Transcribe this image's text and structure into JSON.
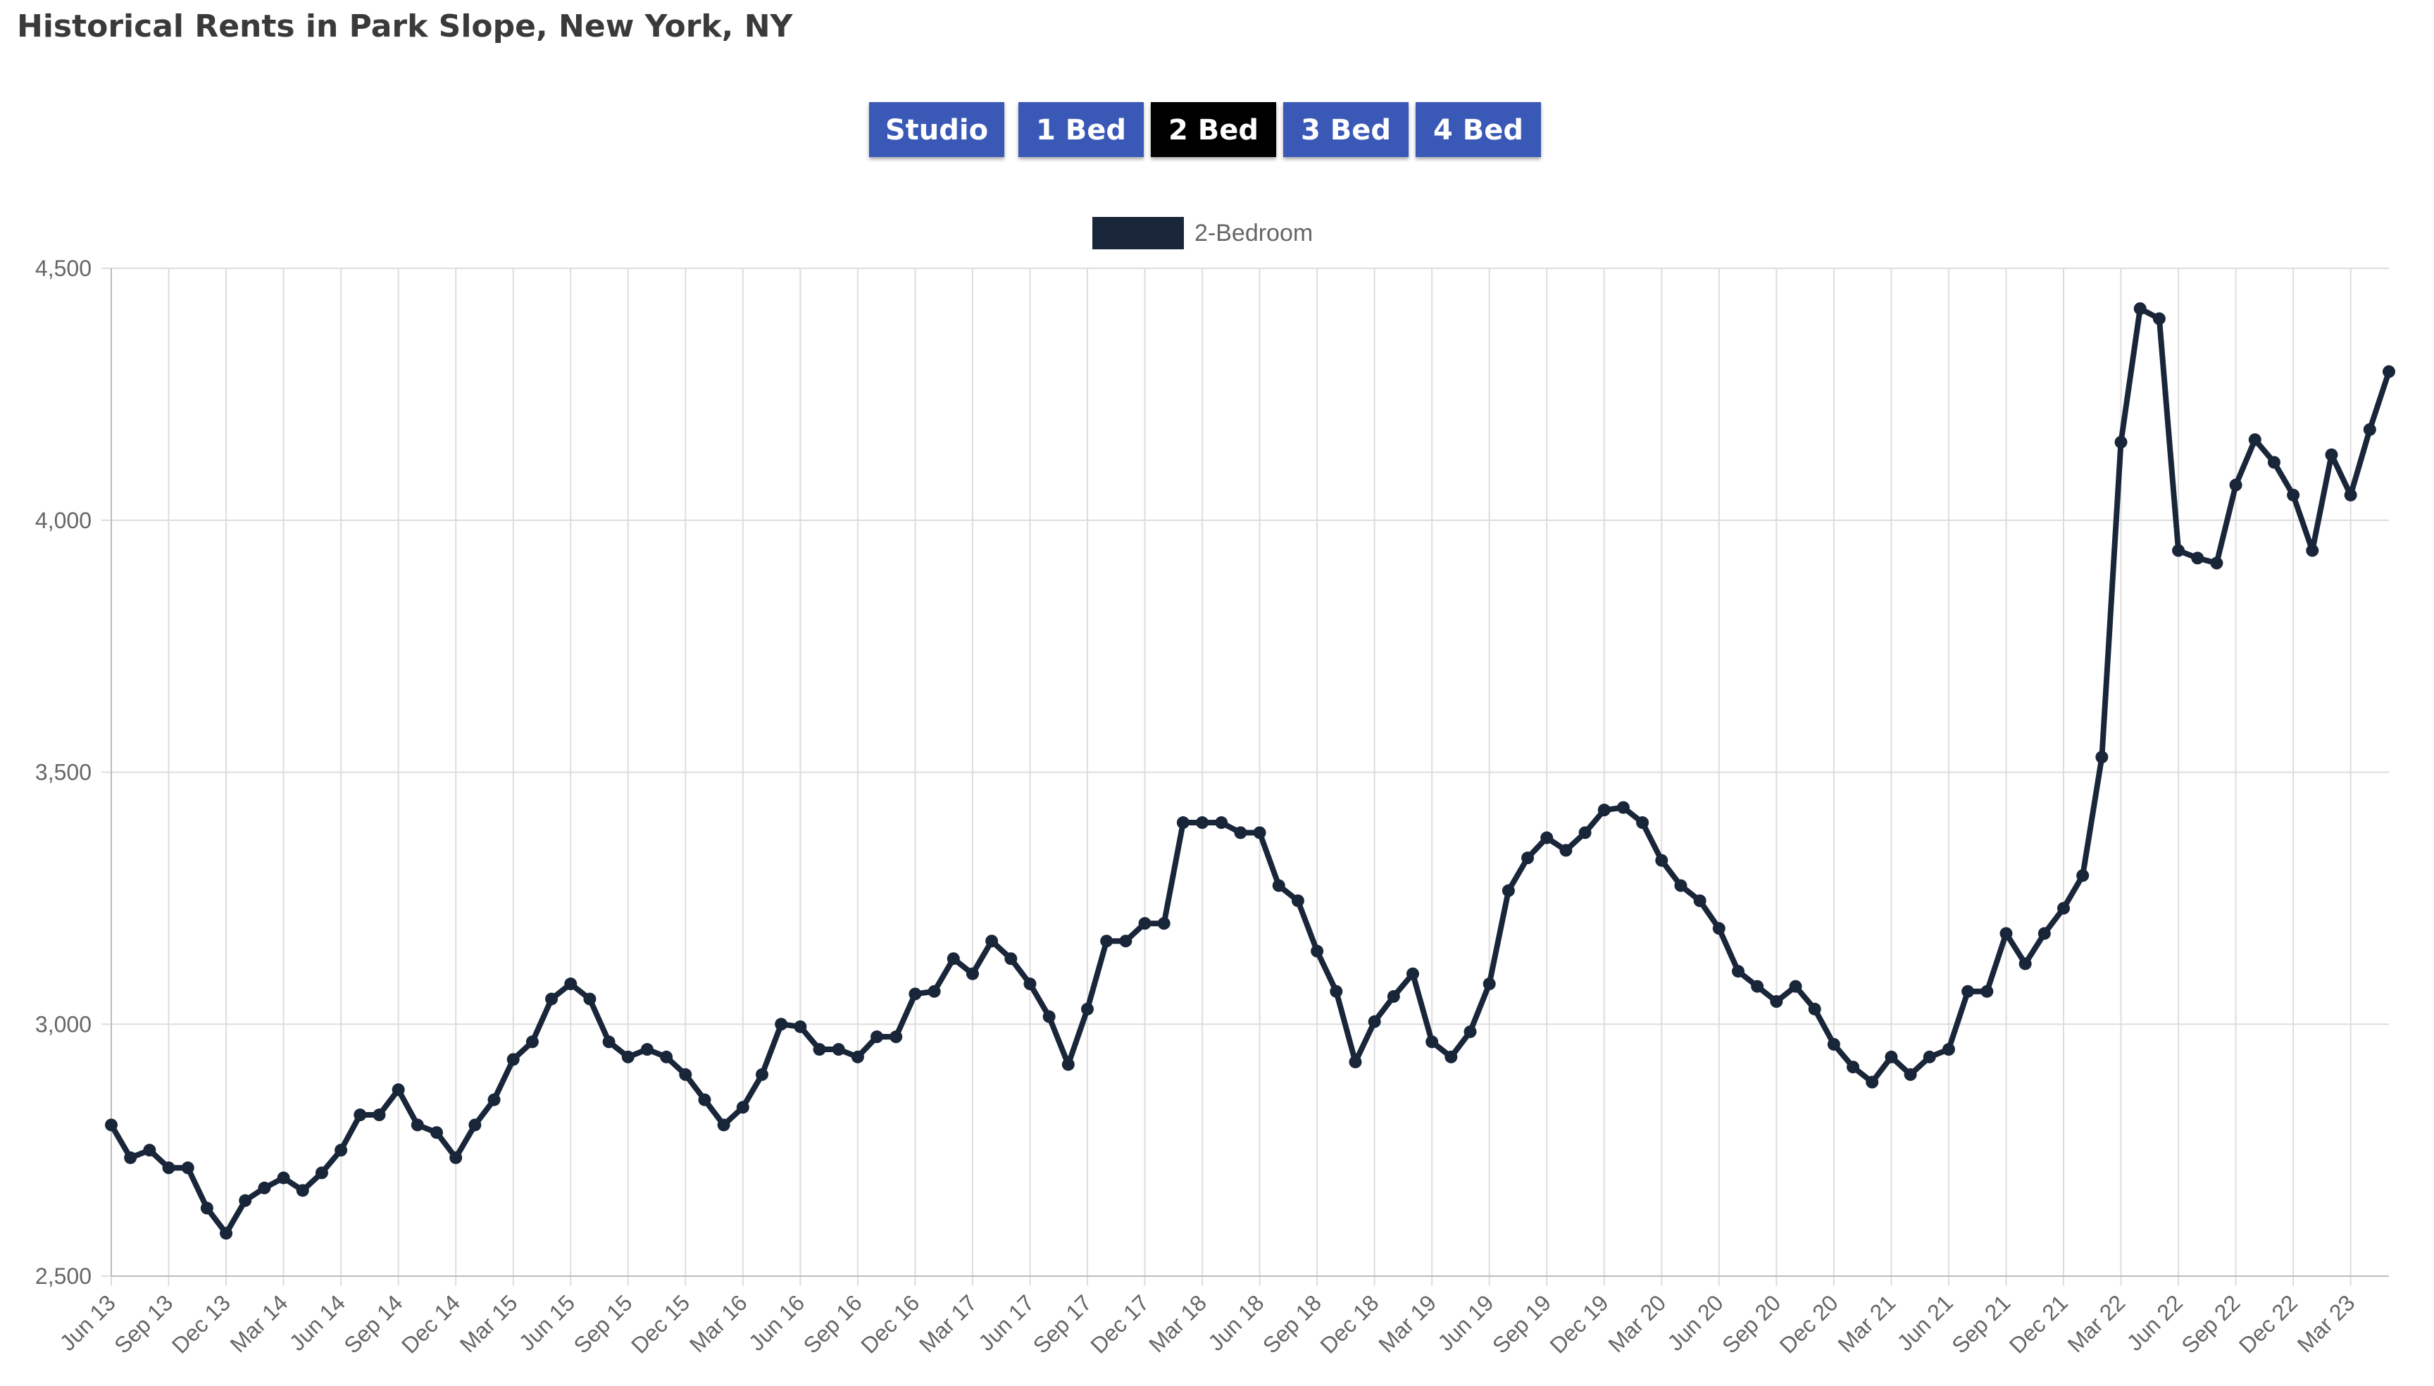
{
  "page_title": "Historical Rents in Park Slope, New York, NY",
  "tabs": [
    {
      "label": "Studio",
      "active": false
    },
    {
      "label": "1 Bed",
      "active": false
    },
    {
      "label": "2 Bed",
      "active": true
    },
    {
      "label": "3 Bed",
      "active": false
    },
    {
      "label": "4 Bed",
      "active": false
    }
  ],
  "colors": {
    "tab_inactive": "#3a59b7",
    "tab_active": "#000000",
    "series": "#192639",
    "grid": "#dddddd",
    "tick_text": "#666666"
  },
  "chart_data": {
    "type": "line",
    "title": "",
    "xlabel": "",
    "ylabel": "",
    "ylim": [
      2500,
      4500
    ],
    "yticks": [
      2500,
      3000,
      3500,
      4000,
      4500
    ],
    "grid": true,
    "legend_position": "top-center",
    "start_month": "Jun 13",
    "tick_labels": [
      "Jun 13",
      "Sep 13",
      "Dec 13",
      "Mar 14",
      "Jun 14",
      "Sep 14",
      "Dec 14",
      "Mar 15",
      "Jun 15",
      "Sep 15",
      "Dec 15",
      "Mar 16",
      "Jun 16",
      "Sep 16",
      "Dec 16",
      "Mar 17",
      "Jun 17",
      "Sep 17",
      "Dec 17",
      "Mar 18",
      "Jun 18",
      "Sep 18",
      "Dec 18",
      "Mar 19",
      "Jun 19",
      "Sep 19",
      "Dec 19",
      "Mar 20",
      "Jun 20",
      "Sep 20",
      "Dec 20",
      "Mar 21",
      "Jun 21",
      "Sep 21",
      "Dec 21",
      "Mar 22",
      "Jun 22",
      "Sep 22",
      "Dec 22",
      "Mar 23"
    ],
    "series": [
      {
        "name": "2-Bedroom",
        "color": "#192639",
        "values": [
          2800,
          2735,
          2750,
          2715,
          2715,
          2635,
          2585,
          2650,
          2675,
          2695,
          2670,
          2705,
          2750,
          2820,
          2820,
          2870,
          2800,
          2785,
          2735,
          2800,
          2850,
          2930,
          2965,
          3050,
          3080,
          3050,
          2965,
          2935,
          2950,
          2935,
          2900,
          2850,
          2800,
          2835,
          2900,
          3000,
          2995,
          2950,
          2950,
          2935,
          2975,
          2975,
          3060,
          3065,
          3130,
          3100,
          3165,
          3130,
          3080,
          3015,
          2920,
          3030,
          3165,
          3165,
          3200,
          3200,
          3400,
          3400,
          3400,
          3380,
          3380,
          3275,
          3245,
          3145,
          3065,
          2925,
          3005,
          3055,
          3100,
          2965,
          2935,
          2985,
          3080,
          3265,
          3330,
          3370,
          3345,
          3380,
          3425,
          3430,
          3400,
          3325,
          3275,
          3245,
          3190,
          3105,
          3075,
          3045,
          3075,
          3030,
          2960,
          2915,
          2885,
          2935,
          2900,
          2935,
          2950,
          3065,
          3065,
          3180,
          3120,
          3180,
          3230,
          3295,
          3530,
          4155,
          4420,
          4400,
          3940,
          3925,
          3915,
          4070,
          4160,
          4115,
          4050,
          3940,
          4130,
          4050,
          4180,
          4295
        ]
      }
    ]
  }
}
